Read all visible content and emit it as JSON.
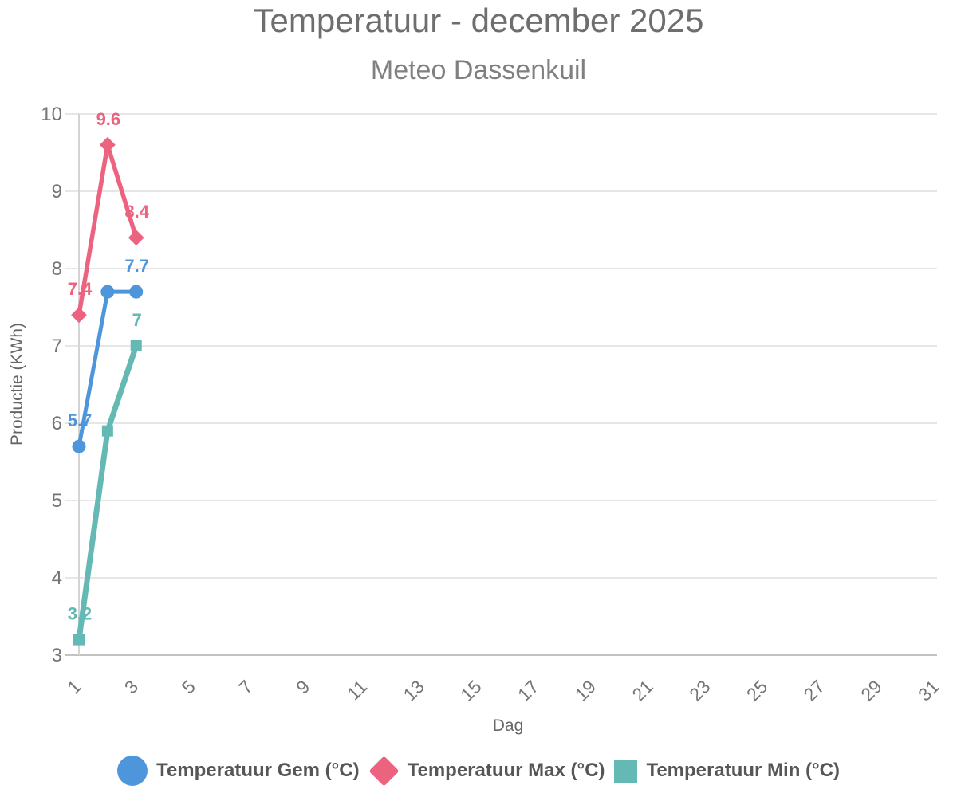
{
  "chart_data": {
    "type": "line",
    "title": "Temperatuur - december 2025",
    "subtitle": "Meteo Dassenkuil",
    "xlabel": "Dag",
    "ylabel": "Productie (KWh)",
    "ylim": [
      3,
      10
    ],
    "x_days": 31,
    "x_tick_labels": [
      "1",
      "3",
      "5",
      "7",
      "9",
      "11",
      "13",
      "15",
      "17",
      "19",
      "21",
      "23",
      "25",
      "27",
      "29",
      "31"
    ],
    "y_tick_labels": [
      "3",
      "4",
      "5",
      "6",
      "7",
      "8",
      "9",
      "10"
    ],
    "grid": "horizontal-only",
    "legend_position": "bottom",
    "series": [
      {
        "name": "Temperatuur Gem (°C)",
        "color": "#4D96DB",
        "marker": "circle",
        "x": [
          1,
          2,
          3
        ],
        "values": [
          5.7,
          7.7,
          7.7
        ],
        "point_labels": [
          "5.7",
          null,
          "7.7"
        ]
      },
      {
        "name": "Temperatuur Max (°C)",
        "color": "#EC6380",
        "marker": "diamond",
        "x": [
          1,
          2,
          3
        ],
        "values": [
          7.4,
          9.6,
          8.4
        ],
        "point_labels": [
          "7.4",
          "9.6",
          "8.4"
        ]
      },
      {
        "name": "Temperatuur Min (°C)",
        "color": "#65B9B4",
        "marker": "square",
        "x": [
          1,
          2,
          3
        ],
        "values": [
          3.2,
          5.9,
          7.0
        ],
        "point_labels": [
          "3.2",
          null,
          "7"
        ]
      }
    ]
  }
}
